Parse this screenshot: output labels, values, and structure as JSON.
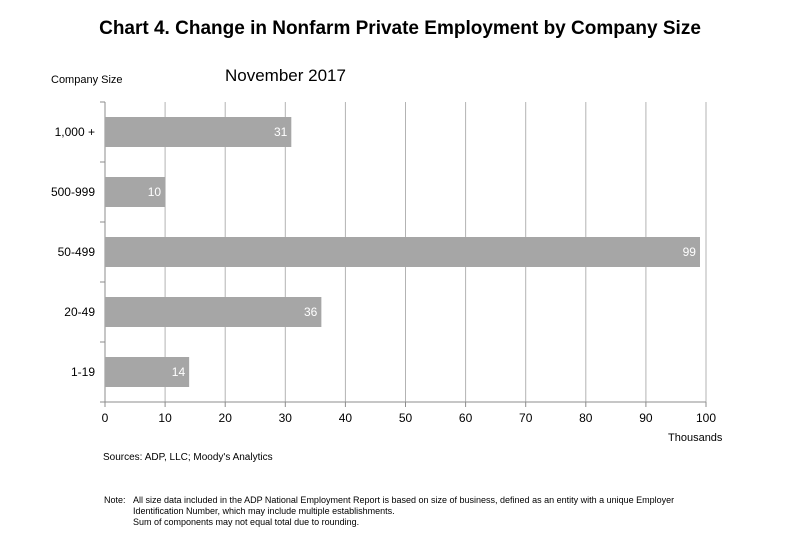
{
  "title": "Chart 4. Change in Nonfarm Private Employment by Company Size",
  "subtitle": "November 2017",
  "y_axis_title": "Company Size",
  "x_axis_units": "Thousands",
  "sources": "Sources: ADP, LLC; Moody's Analytics",
  "note": {
    "label": "Note:",
    "lines": [
      "All size data included in the ADP National Employment Report is based on size of business, defined as an entity with a unique Employer",
      "Identification Number, which may include multiple establishments.",
      "Sum of components may not equal total due to rounding."
    ]
  },
  "colors": {
    "bar": "#a6a6a6",
    "bar_label": "#ffffff",
    "axis": "#8c8c8c",
    "gridline": "#b3b3b3"
  },
  "chart_data": {
    "type": "bar",
    "orientation": "horizontal",
    "categories": [
      "1,000 +",
      "500-999",
      "50-499",
      "20-49",
      "1-19"
    ],
    "values": [
      31,
      10,
      99,
      36,
      14
    ],
    "data_labels": [
      "31",
      "10",
      "99",
      "36",
      "14"
    ],
    "title": "Chart 4. Change in Nonfarm Private Employment by Company Size",
    "subtitle": "November 2017",
    "xlabel": "Thousands",
    "ylabel": "Company Size",
    "xlim": [
      0,
      100
    ],
    "xticks": [
      0,
      10,
      20,
      30,
      40,
      50,
      60,
      70,
      80,
      90,
      100
    ],
    "grid": true,
    "legend": "none"
  }
}
